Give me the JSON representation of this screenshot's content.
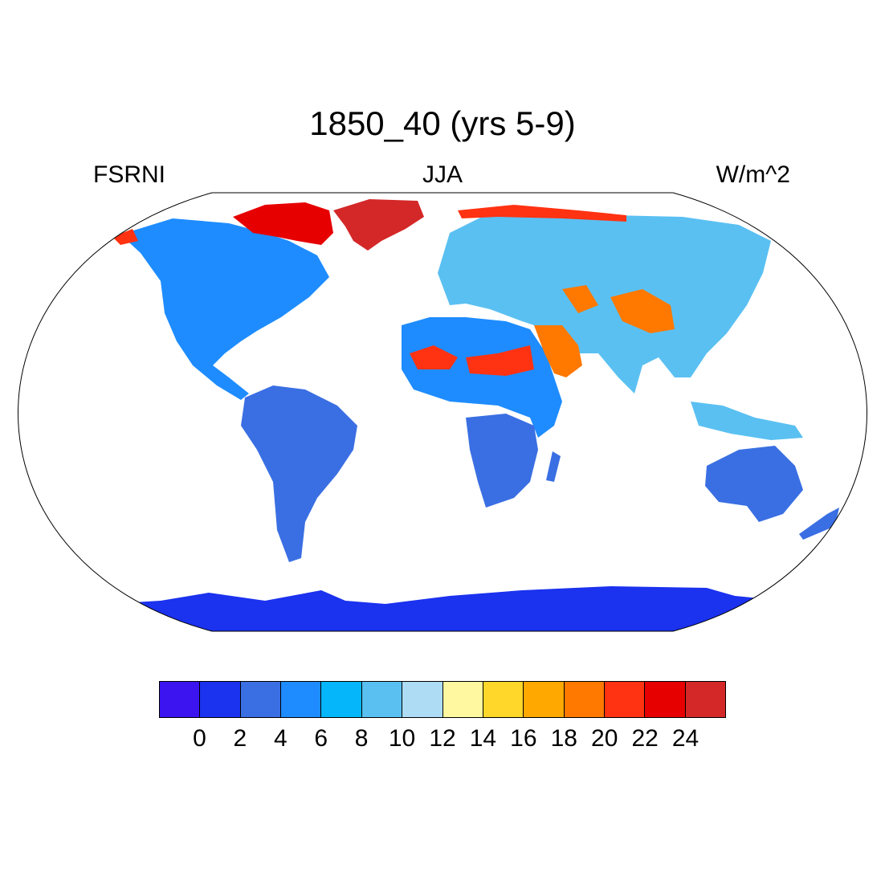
{
  "title": "1850_40 (yrs 5-9)",
  "left_label": "FSRNI",
  "center_label": "JJA",
  "right_label": "W/m^2",
  "colorbar": {
    "colors": [
      "#3c14f0",
      "#1b32ee",
      "#3a6fe3",
      "#1e8cff",
      "#06b6fb",
      "#5ac0f2",
      "#addcf4",
      "#fff8a0",
      "#ffd72a",
      "#ffa800",
      "#ff7800",
      "#ff3212",
      "#e60000",
      "#d42828"
    ],
    "labels": [
      "0",
      "2",
      "4",
      "6",
      "8",
      "10",
      "12",
      "14",
      "16",
      "18",
      "20",
      "22",
      "24"
    ]
  },
  "map": {
    "projection": "Robinson",
    "variable_ramp_note": "",
    "region_colors": {
      "ocean": "#ffffff",
      "antarctica": "#1b32ee",
      "greenland": "#d42828",
      "canadian_arctic": "#e60000",
      "north_america": "#1e8cff",
      "south_america": "#3a6fe3",
      "africa_south": "#3a6fe3",
      "africa_sahel": "#1e8cff",
      "sahara_hot": "#ff3212",
      "arabia": "#ff7800",
      "eurasia": "#5ac0f2",
      "asia_deserts": "#ff7800",
      "siberia_coast": "#ff3212",
      "australia": "#3a6fe3",
      "se_asia": "#5ac0f2"
    }
  }
}
